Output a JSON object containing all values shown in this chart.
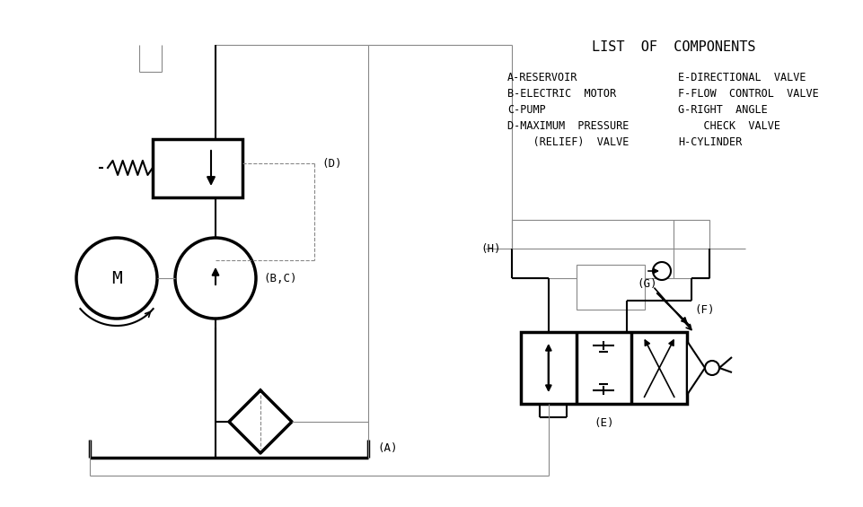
{
  "title": "LIST  OF  COMPONENTS",
  "components_left": [
    "A-RESERVOIR",
    "B-ELECTRIC  MOTOR",
    "C-PUMP",
    "D-MAXIMUM  PRESSURE",
    "    (RELIEF)  VALVE"
  ],
  "components_right": [
    "E-DIRECTIONAL  VALVE",
    "F-FLOW  CONTROL  VALVE",
    "G-RIGHT  ANGLE",
    "    CHECK  VALVE",
    "H-CYLINDER"
  ],
  "bg_color": "#ffffff",
  "line_color": "#000000",
  "gray_color": "#888888",
  "font_family": "monospace",
  "dpi": 100
}
